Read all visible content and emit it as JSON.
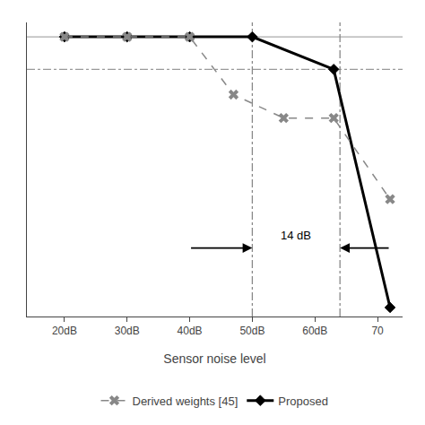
{
  "chart_data": {
    "type": "line",
    "xlabel": "Sensor noise level",
    "xlim": [
      14,
      74
    ],
    "xticks": [
      {
        "value": 20,
        "label": "20dB"
      },
      {
        "value": 30,
        "label": "30dB"
      },
      {
        "value": 40,
        "label": "40dB"
      },
      {
        "value": 50,
        "label": "50dB"
      },
      {
        "value": 60,
        "label": "60dB"
      },
      70
    ],
    "ylim": [
      -0.55,
      1.08
    ],
    "yticks": [],
    "tick_labels": "x",
    "grid": false,
    "legend": "bottom",
    "series": [
      {
        "name": "Proposed",
        "color": "#000000",
        "marker": "diamond",
        "line_style": "solid",
        "x": [
          20,
          30,
          40,
          50,
          63,
          72
        ],
        "values": [
          1.0,
          1.0,
          1.0,
          1.0,
          0.82,
          -0.5
        ]
      },
      {
        "name": "Derived weights [45]",
        "color": "#888888",
        "marker": "x",
        "line_style": "dash",
        "x": [
          20,
          30,
          40,
          47,
          55,
          63,
          72
        ],
        "values": [
          1.0,
          1.0,
          1.0,
          0.68,
          0.55,
          0.55,
          0.1
        ]
      }
    ],
    "reference_lines": [
      {
        "axis": "y",
        "value": 1.0,
        "color": "#aaaaaa",
        "line_style": "solid"
      },
      {
        "axis": "y",
        "value": 0.82,
        "color": "#999999",
        "line_style": "dashdot"
      },
      {
        "axis": "x",
        "value": 50,
        "color": "#888888",
        "line_style": "dashdot"
      },
      {
        "axis": "x",
        "value": 64,
        "color": "#888888",
        "line_style": "dashdot"
      }
    ],
    "arrows": [
      {
        "x_from": 40,
        "x_to": 50,
        "y": -0.17
      },
      {
        "x_from": 72,
        "x_to": 64,
        "y": -0.17
      }
    ],
    "annotations": [
      {
        "text": "14 dB",
        "x": 57,
        "y": -0.1
      }
    ]
  }
}
